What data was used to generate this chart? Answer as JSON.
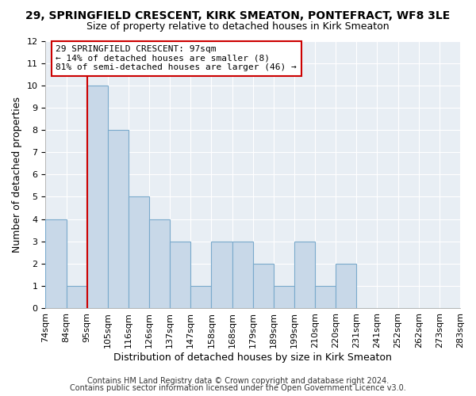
{
  "title": "29, SPRINGFIELD CRESCENT, KIRK SMEATON, PONTEFRACT, WF8 3LE",
  "subtitle": "Size of property relative to detached houses in Kirk Smeaton",
  "xlabel": "Distribution of detached houses by size in Kirk Smeaton",
  "ylabel": "Number of detached properties",
  "bin_labels": [
    "74sqm",
    "84sqm",
    "95sqm",
    "105sqm",
    "116sqm",
    "126sqm",
    "137sqm",
    "147sqm",
    "158sqm",
    "168sqm",
    "179sqm",
    "189sqm",
    "199sqm",
    "210sqm",
    "220sqm",
    "231sqm",
    "241sqm",
    "252sqm",
    "262sqm",
    "273sqm",
    "283sqm"
  ],
  "bar_values": [
    4,
    1,
    10,
    8,
    5,
    4,
    3,
    1,
    3,
    3,
    2,
    1,
    3,
    1,
    2,
    0,
    0,
    0,
    0,
    0
  ],
  "bar_color": "#c8d8e8",
  "bar_edgecolor": "#7aaacc",
  "red_line_x": 2,
  "annotation_text": "29 SPRINGFIELD CRESCENT: 97sqm\n← 14% of detached houses are smaller (8)\n81% of semi-detached houses are larger (46) →",
  "annotation_box_edgecolor": "#cc0000",
  "ylim": [
    0,
    12
  ],
  "yticks": [
    0,
    1,
    2,
    3,
    4,
    5,
    6,
    7,
    8,
    9,
    10,
    11,
    12
  ],
  "footnote1": "Contains HM Land Registry data © Crown copyright and database right 2024.",
  "footnote2": "Contains public sector information licensed under the Open Government Licence v3.0.",
  "background_color": "#ffffff",
  "plot_bg_color": "#e8eef4",
  "grid_color": "#ffffff",
  "title_fontsize": 10,
  "subtitle_fontsize": 9,
  "axis_label_fontsize": 9,
  "tick_fontsize": 8,
  "annotation_fontsize": 8,
  "footnote_fontsize": 7
}
